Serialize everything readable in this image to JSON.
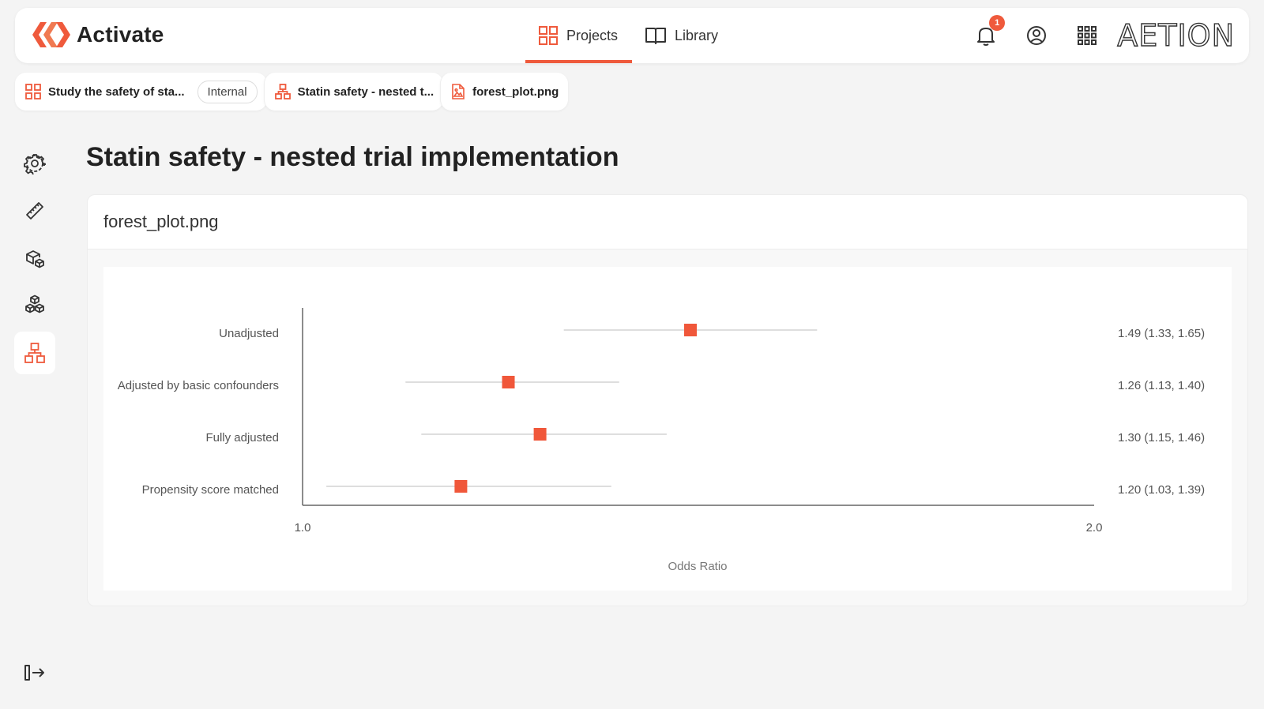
{
  "brand": {
    "name": "Activate",
    "accent": "#ef5a3c"
  },
  "nav": {
    "projects_label": "Projects",
    "library_label": "Library"
  },
  "header": {
    "notification_count": "1",
    "logo_text": "AETION"
  },
  "breadcrumbs": [
    {
      "label": "Study the safety of sta...",
      "icon": "grid-icon",
      "tag": "Internal"
    },
    {
      "label": "Statin safety - nested t...",
      "icon": "hierarchy-icon"
    },
    {
      "label": "forest_plot.png",
      "icon": "image-file-icon"
    }
  ],
  "sidebar": {
    "items": [
      {
        "icon": "gear-icon"
      },
      {
        "icon": "ruler-icon"
      },
      {
        "icon": "cube-shapes-icon"
      },
      {
        "icon": "cubes-icon"
      },
      {
        "icon": "hierarchy-icon",
        "active": true
      }
    ],
    "exit_icon": "exit-icon"
  },
  "main": {
    "title": "Statin safety - nested trial implementation",
    "file_name": "forest_plot.png"
  },
  "chart_data": {
    "type": "scatter",
    "subtype": "forest-plot",
    "title": "",
    "xlabel": "Odds Ratio",
    "xlim": [
      1.0,
      2.0
    ],
    "xticks": [
      "1.0",
      "2.0"
    ],
    "marker_color": "#f0573a",
    "rows": [
      {
        "label": "Unadjusted",
        "estimate": 1.49,
        "lower": 1.33,
        "upper": 1.65,
        "text": "1.49 (1.33, 1.65)"
      },
      {
        "label": "Adjusted by basic confounders",
        "estimate": 1.26,
        "lower": 1.13,
        "upper": 1.4,
        "text": "1.26 (1.13, 1.40)"
      },
      {
        "label": "Fully adjusted",
        "estimate": 1.3,
        "lower": 1.15,
        "upper": 1.46,
        "text": "1.30 (1.15, 1.46)"
      },
      {
        "label": "Propensity score matched",
        "estimate": 1.2,
        "lower": 1.03,
        "upper": 1.39,
        "text": "1.20 (1.03, 1.39)"
      }
    ]
  }
}
